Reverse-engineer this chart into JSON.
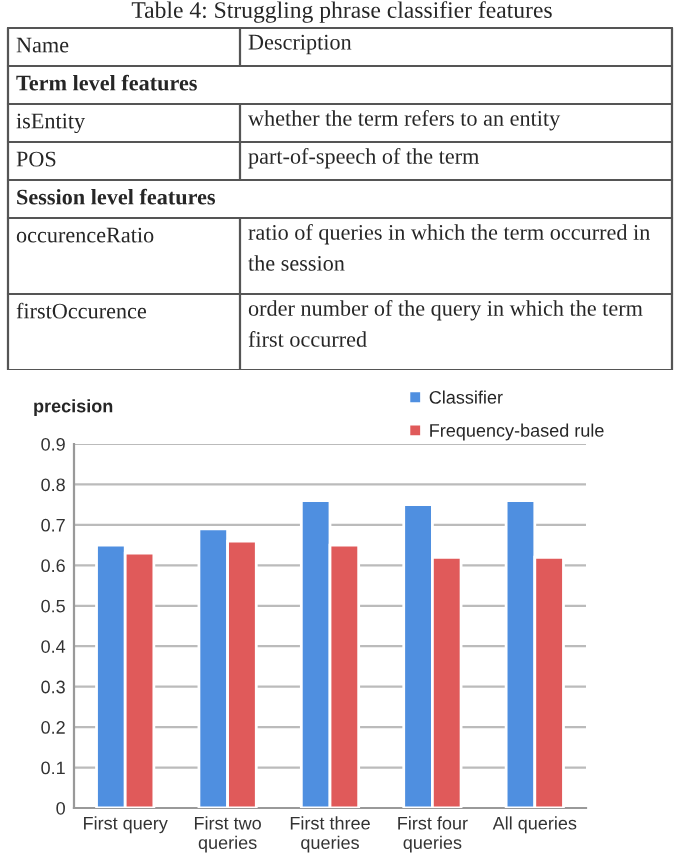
{
  "chart_data": [
    {
      "type": "other",
      "title": "Table 4: Struggling phrase classifier features",
      "annotations": [
        "Name",
        "Description",
        "Term level features",
        "isEntity",
        "whether the term refers to an entity",
        "POS",
        "part-of-speech of the term",
        "Session level features",
        "occurenceRatio",
        "ratio of queries in which the term occurred in the session",
        "firstOccurence",
        "order number of the query in which the term first occurred"
      ]
    },
    {
      "type": "bar",
      "ylabel": "precision",
      "categories": [
        "First query",
        "First two queries",
        "First three queries",
        "First four queries",
        "All queries"
      ],
      "series": [
        {
          "name": "Classifier",
          "color": "#4f8fe0",
          "values": [
            0.65,
            0.69,
            0.76,
            0.75,
            0.76
          ]
        },
        {
          "name": "Frequency-based rule",
          "color": "#e05a5a",
          "values": [
            0.63,
            0.66,
            0.65,
            0.62,
            0.62
          ]
        }
      ],
      "ylim": [
        0,
        0.9
      ],
      "yticks": [
        0,
        0.1,
        0.2,
        0.3,
        0.4,
        0.5,
        0.6,
        0.7,
        0.8,
        0.9
      ],
      "grid": "y",
      "legend": "top right"
    }
  ]
}
